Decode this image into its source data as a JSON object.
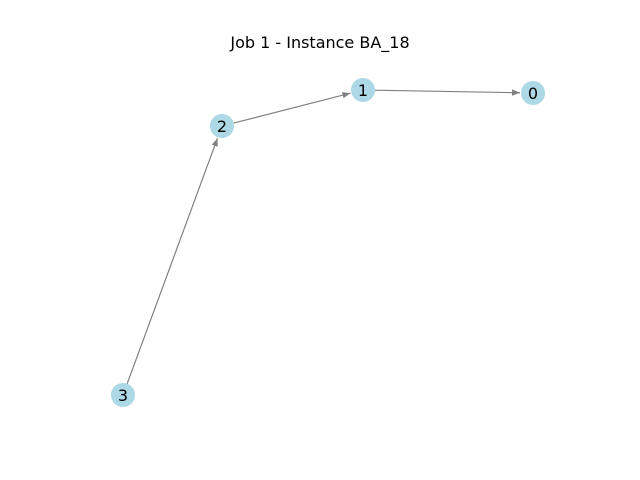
{
  "title": "Job 1 - Instance BA_18",
  "graph": {
    "directed": true,
    "node_color": "#add8e6",
    "edge_color": "#808080",
    "nodes": [
      {
        "id": "0",
        "label": "0"
      },
      {
        "id": "1",
        "label": "1"
      },
      {
        "id": "2",
        "label": "2"
      },
      {
        "id": "3",
        "label": "3"
      }
    ],
    "edges": [
      {
        "from": "1",
        "to": "0"
      },
      {
        "from": "2",
        "to": "1"
      },
      {
        "from": "3",
        "to": "2"
      }
    ]
  }
}
